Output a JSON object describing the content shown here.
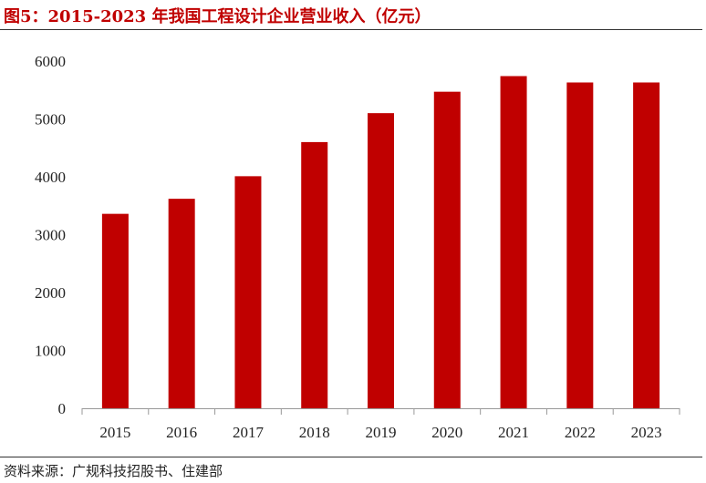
{
  "title": "图5：2015-2023 年我国工程设计企业营业收入（亿元）",
  "source": "资料来源：广规科技招股书、住建部",
  "chart_data": {
    "type": "bar",
    "categories": [
      "2015",
      "2016",
      "2017",
      "2018",
      "2019",
      "2020",
      "2021",
      "2022",
      "2023"
    ],
    "values": [
      3360,
      3620,
      4010,
      4600,
      5100,
      5470,
      5740,
      5630,
      5630
    ],
    "ylim": [
      0,
      6000
    ],
    "yticks": [
      0,
      1000,
      2000,
      3000,
      4000,
      5000,
      6000
    ],
    "grid": false,
    "legend": "none",
    "bar_color": "#c00000"
  }
}
